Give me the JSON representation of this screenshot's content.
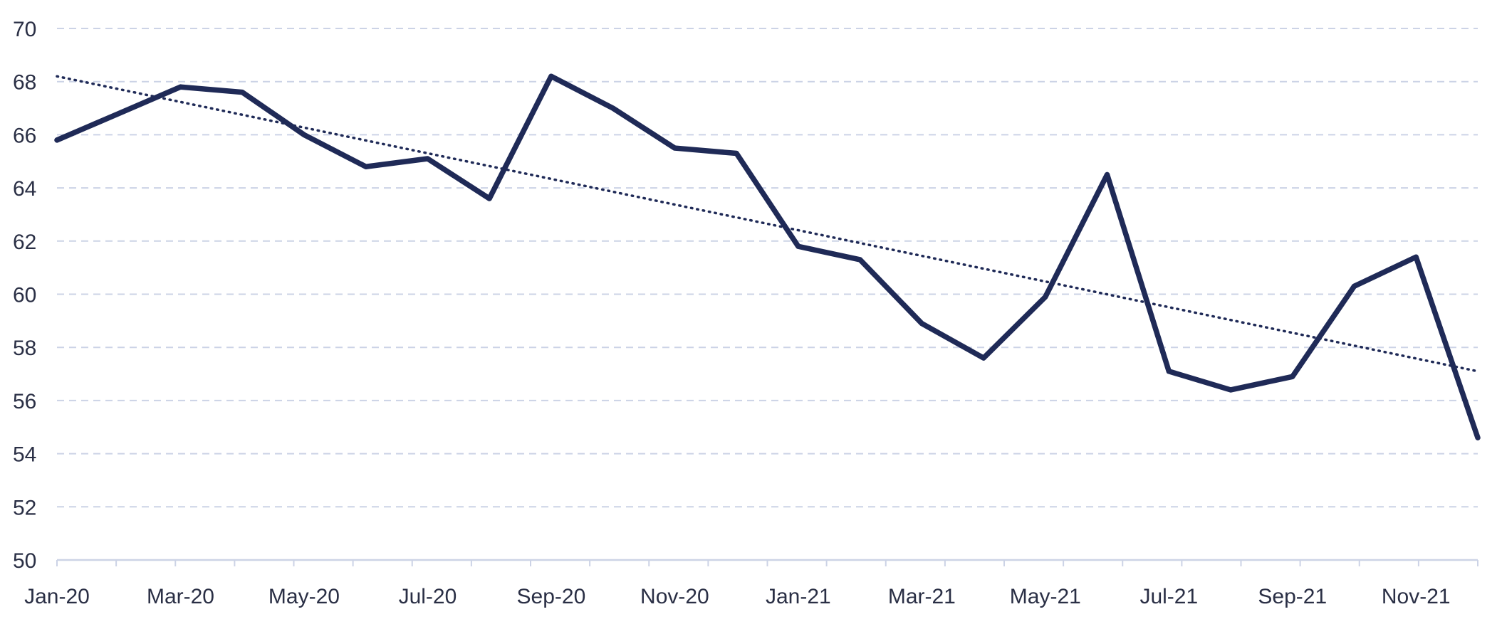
{
  "colors": {
    "series": "#1f2a57",
    "trend": "#1f2a57",
    "grid": "#ccd3e6",
    "text": "#2a2f45"
  },
  "chart_data": {
    "type": "line",
    "title": "",
    "xlabel": "",
    "ylabel": "",
    "ylim": [
      50,
      70
    ],
    "y_ticks": [
      50,
      52,
      54,
      56,
      58,
      60,
      62,
      64,
      66,
      68,
      70
    ],
    "grid": "horizontal dashed",
    "legend": "none",
    "categories": [
      "Jan-20",
      "Feb-20",
      "Mar-20",
      "Apr-20",
      "May-20",
      "Jun-20",
      "Jul-20",
      "Aug-20",
      "Sep-20",
      "Oct-20",
      "Nov-20",
      "Dec-20",
      "Jan-21",
      "Feb-21",
      "Mar-21",
      "Apr-21",
      "May-21",
      "Jun-21",
      "Jul-21",
      "Aug-21",
      "Sep-21",
      "Oct-21",
      "Nov-21",
      "Dec-21"
    ],
    "x_tick_labels": [
      "Jan-20",
      "Mar-20",
      "May-20",
      "Jul-20",
      "Sep-20",
      "Nov-20",
      "Jan-21",
      "Mar-21",
      "May-21",
      "Jul-21",
      "Sep-21",
      "Nov-21"
    ],
    "series": [
      {
        "values": [
          65.8,
          66.8,
          67.8,
          67.6,
          66.0,
          64.8,
          65.1,
          63.6,
          68.2,
          67.0,
          65.5,
          65.3,
          61.8,
          61.3,
          58.9,
          57.6,
          59.9,
          64.5,
          57.1,
          56.4,
          56.9,
          60.3,
          61.4,
          54.6
        ]
      }
    ],
    "trendline": {
      "style": "dotted",
      "start_value": 68.2,
      "end_value": 57.1
    }
  }
}
